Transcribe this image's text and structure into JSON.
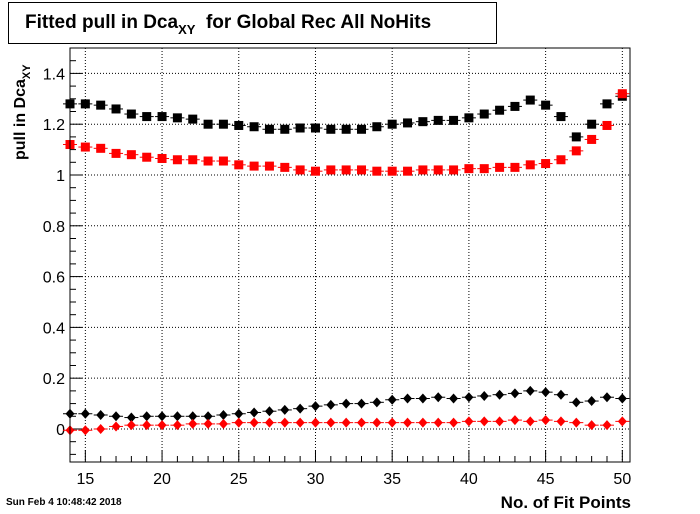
{
  "title": {
    "main": "Fitted pull in Dca",
    "sub": "XY",
    "rest": "for Global Rec All NoHits"
  },
  "ylabel": {
    "main": "pull in Dca",
    "sub": "XY"
  },
  "xlabel": "No. of Fit Points",
  "timestamp": "Sun Feb  4 10:48:42 2018",
  "chart_data": {
    "type": "scatter",
    "xlim": [
      14,
      50.5
    ],
    "ylim": [
      -0.13,
      1.5
    ],
    "x_ticks": [
      15,
      20,
      25,
      30,
      35,
      40,
      45,
      50
    ],
    "y_ticks": [
      0,
      0.2,
      0.4,
      0.6,
      0.8,
      1,
      1.2,
      1.4
    ],
    "grid": true,
    "x": [
      14,
      15,
      16,
      17,
      18,
      19,
      20,
      21,
      22,
      23,
      24,
      25,
      26,
      27,
      28,
      29,
      30,
      31,
      32,
      33,
      34,
      35,
      36,
      37,
      38,
      39,
      40,
      41,
      42,
      43,
      44,
      45,
      46,
      47,
      48,
      49,
      50
    ],
    "series": [
      {
        "marker": "square",
        "color": "#000000",
        "values": [
          1.28,
          1.28,
          1.275,
          1.26,
          1.24,
          1.23,
          1.23,
          1.225,
          1.22,
          1.2,
          1.2,
          1.195,
          1.19,
          1.18,
          1.18,
          1.185,
          1.185,
          1.18,
          1.18,
          1.18,
          1.19,
          1.2,
          1.205,
          1.21,
          1.215,
          1.215,
          1.225,
          1.24,
          1.255,
          1.27,
          1.295,
          1.275,
          1.23,
          1.15,
          1.2,
          1.28,
          1.31
        ]
      },
      {
        "marker": "square",
        "color": "#ff0000",
        "values": [
          1.12,
          1.11,
          1.105,
          1.085,
          1.08,
          1.07,
          1.065,
          1.06,
          1.06,
          1.055,
          1.055,
          1.04,
          1.035,
          1.035,
          1.03,
          1.02,
          1.015,
          1.02,
          1.02,
          1.02,
          1.015,
          1.015,
          1.015,
          1.02,
          1.02,
          1.02,
          1.025,
          1.025,
          1.03,
          1.03,
          1.04,
          1.045,
          1.06,
          1.095,
          1.14,
          1.195,
          1.32
        ]
      },
      {
        "marker": "diamond",
        "color": "#000000",
        "values": [
          0.06,
          0.06,
          0.055,
          0.05,
          0.045,
          0.05,
          0.05,
          0.05,
          0.05,
          0.05,
          0.055,
          0.06,
          0.065,
          0.07,
          0.075,
          0.08,
          0.09,
          0.095,
          0.1,
          0.1,
          0.105,
          0.115,
          0.12,
          0.12,
          0.125,
          0.12,
          0.125,
          0.13,
          0.135,
          0.14,
          0.15,
          0.145,
          0.135,
          0.105,
          0.11,
          0.125,
          0.12
        ]
      },
      {
        "marker": "diamond",
        "color": "#ff0000",
        "values": [
          -0.005,
          -0.005,
          0.0,
          0.01,
          0.015,
          0.015,
          0.015,
          0.015,
          0.02,
          0.02,
          0.02,
          0.025,
          0.025,
          0.025,
          0.025,
          0.025,
          0.025,
          0.025,
          0.025,
          0.025,
          0.025,
          0.025,
          0.025,
          0.025,
          0.025,
          0.025,
          0.03,
          0.03,
          0.03,
          0.035,
          0.03,
          0.035,
          0.03,
          0.025,
          0.015,
          0.015,
          0.03
        ]
      }
    ]
  }
}
